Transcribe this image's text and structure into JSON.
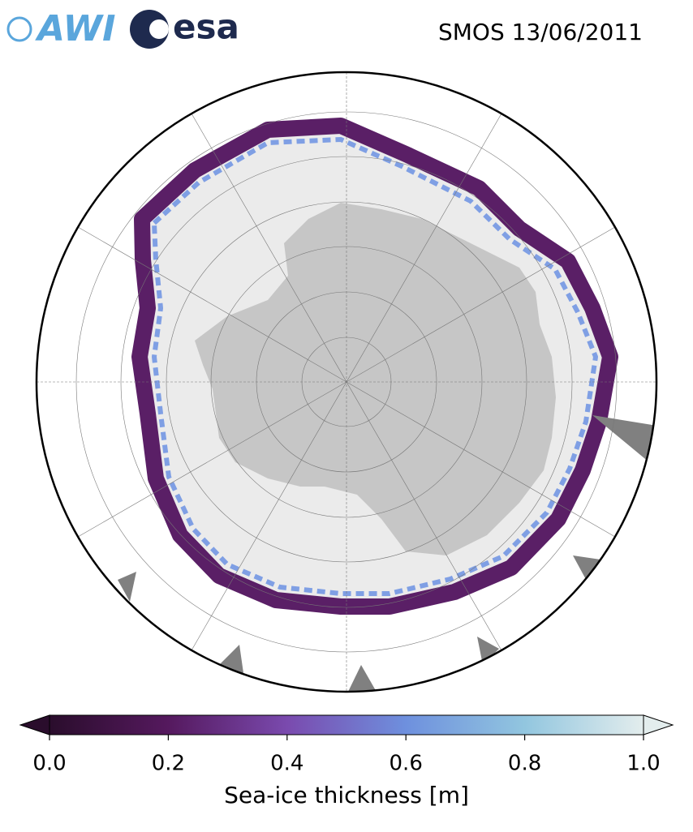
{
  "logos": {
    "awi": "AWI",
    "esa": "esa"
  },
  "title": "SMOS 13/06/2011",
  "colorbar": {
    "label": "Sea-ice thickness [m]",
    "lim": [
      0,
      1
    ],
    "ticks": [
      {
        "value": 0,
        "label": "0.0"
      },
      {
        "value": 0.2,
        "label": "0.2"
      },
      {
        "value": 0.4,
        "label": "0.4"
      },
      {
        "value": 0.6,
        "label": "0.6"
      },
      {
        "value": 0.8,
        "label": "0.8"
      },
      {
        "value": 1,
        "label": "1.0"
      }
    ],
    "colors": [
      "#2a0d2c",
      "#55195e",
      "#7a4aae",
      "#6e90de",
      "#92c6df",
      "#e3eded"
    ]
  }
}
